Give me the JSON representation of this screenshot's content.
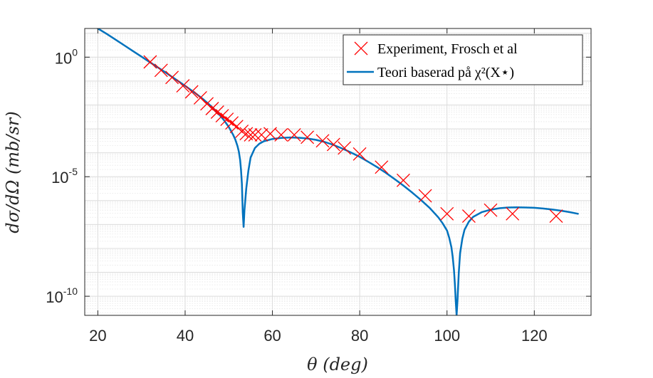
{
  "chart_data": {
    "type": "line",
    "title": "",
    "xlabel": "θ (deg)",
    "ylabel": "dσ/dΩ (mb/sr)",
    "xlim": [
      17,
      133
    ],
    "ylim_log10": [
      -10.8,
      1.2
    ],
    "yscale": "log",
    "grid": true,
    "minor_grid": true,
    "legend_position": "top-right",
    "x_ticks": [
      20,
      40,
      60,
      80,
      100,
      120
    ],
    "y_ticks": [
      {
        "base": "10",
        "exp": "0",
        "log10": 0
      },
      {
        "base": "10",
        "exp": "-5",
        "log10": -5
      },
      {
        "base": "10",
        "exp": "-10",
        "log10": -10
      }
    ],
    "series": [
      {
        "name": "Experiment, Frosch et al",
        "kind": "markers",
        "marker": "x",
        "color": "#ff0000",
        "x": [
          32,
          34.5,
          37,
          39.5,
          41.5,
          43.5,
          45,
          46.2,
          47.4,
          48.5,
          49.6,
          50.7,
          51.8,
          53,
          54,
          55,
          56,
          57.5,
          59.5,
          62,
          65,
          68,
          71.5,
          74,
          76.5,
          80,
          85,
          90,
          95,
          100,
          105,
          110,
          115,
          125
        ],
        "log10_y": [
          -0.2,
          -0.55,
          -0.85,
          -1.2,
          -1.45,
          -1.7,
          -1.95,
          -2.15,
          -2.3,
          -2.45,
          -2.6,
          -2.75,
          -2.9,
          -3.1,
          -3.2,
          -3.25,
          -3.25,
          -3.25,
          -3.2,
          -3.25,
          -3.25,
          -3.35,
          -3.5,
          -3.65,
          -3.8,
          -4.05,
          -4.6,
          -5.15,
          -5.8,
          -6.55,
          -6.65,
          -6.4,
          -6.55,
          -6.65
        ]
      },
      {
        "name": "Teori baserad på χ²(X⋆)",
        "kind": "line",
        "color": "#0072bd",
        "x": [
          20,
          22,
          24,
          26,
          28,
          30,
          32,
          34,
          36,
          38,
          40,
          42,
          44,
          46,
          47,
          48,
          49,
          50,
          51,
          51.5,
          52,
          52.3,
          52.6,
          52.8,
          53,
          53.1,
          53.2,
          53.4,
          53.6,
          54,
          54.5,
          55,
          56,
          57,
          58,
          60,
          62,
          64,
          66,
          68,
          70,
          72,
          74,
          76,
          78,
          80,
          82,
          84,
          86,
          88,
          90,
          92,
          94,
          96,
          98,
          99,
          100,
          100.5,
          101,
          101.3,
          101.6,
          101.8,
          102,
          102.2,
          102.4,
          102.7,
          103,
          103.5,
          104,
          105,
          106,
          108,
          110,
          112,
          114,
          116,
          118,
          120,
          122,
          124,
          126,
          128,
          130
        ],
        "log10_y": [
          1.2,
          0.98,
          0.74,
          0.5,
          0.26,
          0.02,
          -0.22,
          -0.46,
          -0.7,
          -0.95,
          -1.2,
          -1.46,
          -1.74,
          -2.06,
          -2.24,
          -2.44,
          -2.66,
          -2.92,
          -3.25,
          -3.45,
          -3.72,
          -3.95,
          -4.3,
          -4.7,
          -5.3,
          -5.9,
          -6.5,
          -7.1,
          -6.4,
          -5.5,
          -4.75,
          -4.2,
          -3.8,
          -3.62,
          -3.52,
          -3.42,
          -3.38,
          -3.36,
          -3.37,
          -3.4,
          -3.46,
          -3.55,
          -3.67,
          -3.82,
          -3.99,
          -4.17,
          -4.38,
          -4.6,
          -4.84,
          -5.1,
          -5.37,
          -5.66,
          -5.97,
          -6.3,
          -6.7,
          -6.95,
          -7.25,
          -7.55,
          -7.95,
          -8.35,
          -8.9,
          -9.5,
          -10.2,
          -10.8,
          -10.2,
          -9.0,
          -8.2,
          -7.6,
          -7.22,
          -6.88,
          -6.68,
          -6.48,
          -6.38,
          -6.32,
          -6.29,
          -6.28,
          -6.29,
          -6.3,
          -6.33,
          -6.37,
          -6.42,
          -6.48,
          -6.55
        ]
      }
    ]
  }
}
